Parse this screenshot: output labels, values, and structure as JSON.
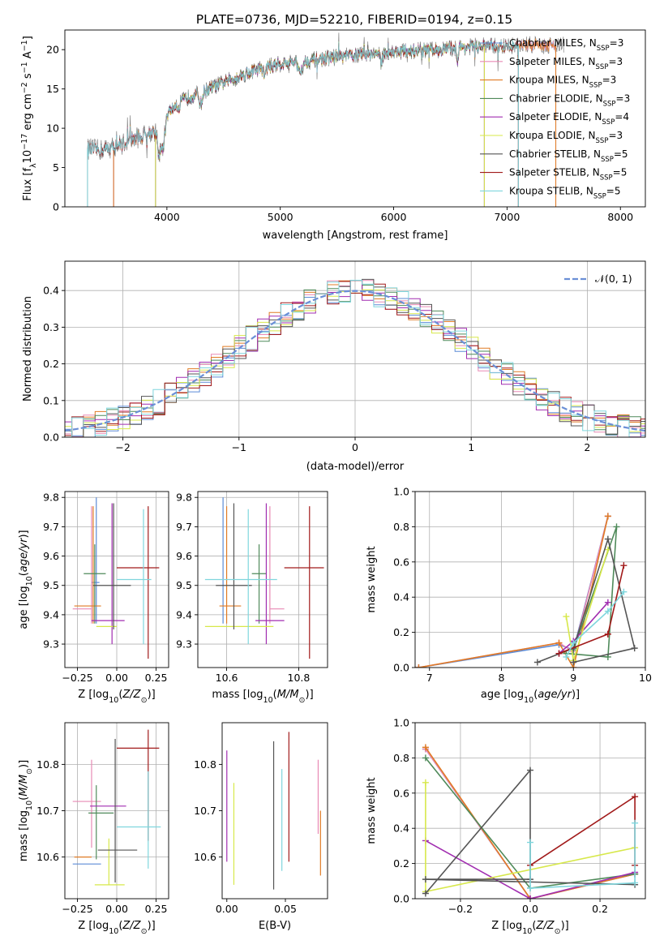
{
  "figure": {
    "title": "PLATE=0736, MJD=52210, FIBERID=0194, z=0.15"
  },
  "colors": {
    "Chabrier MILES": "#5b8bd6",
    "Salpeter MILES": "#e88ab5",
    "Kroupa MILES": "#e07b25",
    "Chabrier ELODIE": "#4f8a5a",
    "Salpeter ELODIE": "#a12db0",
    "Kroupa ELODIE": "#d7e84a",
    "Chabrier STELIB": "#555555",
    "Salpeter STELIB": "#a11a1a",
    "Kroupa STELIB": "#7fd6dd",
    "data": "#808080",
    "normal": "#6b8fd6"
  },
  "chart_data": [
    {
      "id": "spectrum",
      "type": "line",
      "xlabel": "wavelength [Angstrom, rest frame]",
      "ylabel": "Flux [f_λ10^-17 erg cm^-2 s^-1 A^-1]",
      "xlim": [
        3100,
        8220
      ],
      "ylim": [
        0,
        22.5
      ],
      "xticks": [
        4000,
        5000,
        6000,
        7000,
        8000
      ],
      "yticks": [
        0,
        5,
        10,
        15,
        20
      ],
      "grid": false,
      "legend_position": "top-right",
      "legend": [
        {
          "base": "Chabrier MILES, N",
          "n": "3"
        },
        {
          "base": "Salpeter MILES, N",
          "n": "3"
        },
        {
          "base": "Kroupa MILES, N",
          "n": "3"
        },
        {
          "base": "Chabrier ELODIE, N",
          "n": "3"
        },
        {
          "base": "Salpeter ELODIE, N",
          "n": "4"
        },
        {
          "base": "Kroupa ELODIE, N",
          "n": "3"
        },
        {
          "base": "Chabrier STELIB, N",
          "n": "5"
        },
        {
          "base": "Salpeter STELIB, N",
          "n": "5"
        },
        {
          "base": "Kroupa STELIB, N",
          "n": "5"
        }
      ],
      "legend_sub": "SSP",
      "continuum": {
        "x": [
          3300,
          3400,
          3500,
          3600,
          3700,
          3800,
          3900,
          4000,
          4100,
          4200,
          4300,
          4400,
          4600,
          4800,
          5000,
          5200,
          5400,
          5600,
          5800,
          6000,
          6200,
          6400,
          6600,
          6800,
          7000,
          7100
        ],
        "y": [
          7.4,
          7.2,
          7.5,
          8.0,
          8.6,
          9.1,
          9.8,
          11.8,
          13.2,
          14.0,
          14.6,
          15.2,
          16.4,
          17.5,
          18.2,
          18.5,
          18.9,
          19.2,
          19.5,
          19.7,
          19.9,
          20.0,
          20.3,
          20.5,
          20.4,
          20.6
        ]
      },
      "data_extends_to": 7500,
      "model_ranges": [
        {
          "model": "Chabrier MILES",
          "from": 3530,
          "to": 7430
        },
        {
          "model": "Salpeter MILES",
          "from": 3530,
          "to": 7430
        },
        {
          "model": "Kroupa MILES",
          "from": 3530,
          "to": 7430
        },
        {
          "model": "Chabrier ELODIE",
          "from": 3900,
          "to": 6800
        },
        {
          "model": "Salpeter ELODIE",
          "from": 3900,
          "to": 6800
        },
        {
          "model": "Kroupa ELODIE",
          "from": 3900,
          "to": 6800
        },
        {
          "model": "Chabrier STELIB",
          "from": 3300,
          "to": 7100
        },
        {
          "model": "Salpeter STELIB",
          "from": 3300,
          "to": 7100
        },
        {
          "model": "Kroupa STELIB",
          "from": 3300,
          "to": 7100
        }
      ]
    },
    {
      "id": "residuals",
      "type": "histogram",
      "xlabel": "(data-model)/error",
      "ylabel": "Normed distribution",
      "xlim": [
        -2.5,
        2.5
      ],
      "ylim": [
        0,
        0.48
      ],
      "xticks": [
        -2,
        -1,
        0,
        1,
        2
      ],
      "yticks": [
        0.0,
        0.1,
        0.2,
        0.3,
        0.4
      ],
      "grid": true,
      "legend_position": "top-right",
      "legend_label": "𝒩(0, 1)",
      "bin_width": 0.1
    },
    {
      "id": "age_vs_Z",
      "type": "errorbar",
      "xlabel": "Z [log10(Z/Z☉)]",
      "ylabel": "age  [log10(age/yr)]",
      "xlim": [
        -0.33,
        0.33
      ],
      "ylim": [
        9.22,
        9.82
      ],
      "xticks": [
        -0.25,
        0.0,
        0.25
      ],
      "yticks": [
        9.3,
        9.4,
        9.5,
        9.6,
        9.7,
        9.8
      ],
      "grid": true,
      "points": [
        {
          "model": "Chabrier MILES",
          "x": -0.13,
          "xerr": [
            0.03,
            0.02
          ],
          "y": 9.51,
          "yerr": [
            0.14,
            0.29
          ]
        },
        {
          "model": "Salpeter MILES",
          "x": -0.16,
          "xerr": [
            0.12,
            0.0
          ],
          "y": 9.42,
          "yerr": [
            0.05,
            0.35
          ]
        },
        {
          "model": "Kroupa MILES",
          "x": -0.15,
          "xerr": [
            0.12,
            0.05
          ],
          "y": 9.43,
          "yerr": [
            0.06,
            0.34
          ]
        },
        {
          "model": "Chabrier ELODIE",
          "x": -0.14,
          "xerr": [
            0.07,
            0.07
          ],
          "y": 9.54,
          "yerr": [
            0.17,
            0.1
          ]
        },
        {
          "model": "Salpeter ELODIE",
          "x": -0.03,
          "xerr": [
            0.13,
            0.08
          ],
          "y": 9.38,
          "yerr": [
            0.08,
            0.4
          ]
        },
        {
          "model": "Kroupa ELODIE",
          "x": -0.08,
          "xerr": [
            0.05,
            0.08
          ],
          "y": 9.36,
          "yerr": [
            0.0,
            0.0
          ]
        },
        {
          "model": "Chabrier STELIB",
          "x": -0.02,
          "xerr": [
            0.13,
            0.11
          ],
          "y": 9.5,
          "yerr": [
            0.15,
            0.28
          ]
        },
        {
          "model": "Salpeter STELIB",
          "x": 0.2,
          "xerr": [
            0.2,
            0.07
          ],
          "y": 9.56,
          "yerr": [
            0.31,
            0.21
          ]
        },
        {
          "model": "Kroupa STELIB",
          "x": 0.17,
          "xerr": [
            0.17,
            0.05
          ],
          "y": 9.52,
          "yerr": [
            0.22,
            0.24
          ]
        }
      ]
    },
    {
      "id": "age_vs_mass",
      "type": "errorbar",
      "xlabel": "mass [log10(M/M☉)]",
      "ylabel": "",
      "xlim": [
        10.52,
        10.88
      ],
      "ylim": [
        9.22,
        9.82
      ],
      "xticks": [
        10.6,
        10.8
      ],
      "yticks": [
        9.3,
        9.4,
        9.5,
        9.6,
        9.7,
        9.8
      ],
      "grid": true,
      "points": [
        {
          "model": "Chabrier MILES",
          "x": 10.59,
          "xerr": [
            0.0,
            0.0
          ],
          "y": 9.51,
          "yerr": [
            0.14,
            0.29
          ]
        },
        {
          "model": "Salpeter MILES",
          "x": 10.72,
          "xerr": [
            0.0,
            0.04
          ],
          "y": 9.42,
          "yerr": [
            0.05,
            0.35
          ]
        },
        {
          "model": "Kroupa MILES",
          "x": 10.6,
          "xerr": [
            0.02,
            0.04
          ],
          "y": 9.43,
          "yerr": [
            0.06,
            0.34
          ]
        },
        {
          "model": "Chabrier ELODIE",
          "x": 10.69,
          "xerr": [
            0.02,
            0.02
          ],
          "y": 9.54,
          "yerr": [
            0.17,
            0.1
          ]
        },
        {
          "model": "Salpeter ELODIE",
          "x": 10.71,
          "xerr": [
            0.03,
            0.05
          ],
          "y": 9.38,
          "yerr": [
            0.08,
            0.4
          ]
        },
        {
          "model": "Kroupa ELODIE",
          "x": 10.64,
          "xerr": [
            0.1,
            0.09
          ],
          "y": 9.36,
          "yerr": [
            0.0,
            0.0
          ]
        },
        {
          "model": "Chabrier STELIB",
          "x": 10.62,
          "xerr": [
            0.05,
            0.05
          ],
          "y": 9.5,
          "yerr": [
            0.15,
            0.28
          ]
        },
        {
          "model": "Salpeter STELIB",
          "x": 10.83,
          "xerr": [
            0.07,
            0.04
          ],
          "y": 9.56,
          "yerr": [
            0.31,
            0.21
          ]
        },
        {
          "model": "Kroupa STELIB",
          "x": 10.66,
          "xerr": [
            0.12,
            0.08
          ],
          "y": 9.52,
          "yerr": [
            0.22,
            0.24
          ]
        }
      ]
    },
    {
      "id": "weight_vs_age",
      "type": "line",
      "xlabel": "age  [log10(age/yr)]",
      "ylabel": "mass weight",
      "xlim": [
        6.8,
        10
      ],
      "ylim": [
        0,
        1
      ],
      "xticks": [
        7,
        8,
        9,
        10
      ],
      "yticks": [
        0.0,
        0.2,
        0.4,
        0.6,
        0.8,
        1.0
      ],
      "grid": true,
      "series": [
        {
          "model": "Chabrier MILES",
          "x": [
            6.85,
            8.8,
            9.0,
            9.48
          ],
          "y": [
            0.0,
            0.13,
            0.1,
            0.86
          ]
        },
        {
          "model": "Salpeter MILES",
          "x": [
            6.85,
            8.8,
            9.0,
            9.48
          ],
          "y": [
            0.0,
            0.14,
            0.09,
            0.86
          ]
        },
        {
          "model": "Kroupa MILES",
          "x": [
            6.85,
            8.8,
            9.0,
            9.48
          ],
          "y": [
            0.0,
            0.14,
            0.0,
            0.86
          ]
        },
        {
          "model": "Chabrier ELODIE",
          "x": [
            8.9,
            9.48,
            9.6,
            9.0
          ],
          "y": [
            0.08,
            0.06,
            0.8,
            0.1
          ]
        },
        {
          "model": "Salpeter ELODIE",
          "x": [
            8.8,
            9.0,
            9.48
          ],
          "y": [
            0.08,
            0.15,
            0.37
          ]
        },
        {
          "model": "Kroupa ELODIE",
          "x": [
            8.9,
            9.0,
            9.48
          ],
          "y": [
            0.29,
            0.04,
            0.67
          ]
        },
        {
          "model": "Chabrier STELIB",
          "x": [
            8.5,
            9.0,
            9.48,
            9.85,
            9.0
          ],
          "y": [
            0.03,
            0.11,
            0.73,
            0.11,
            0.03
          ]
        },
        {
          "model": "Salpeter STELIB",
          "x": [
            8.8,
            9.48,
            9.7,
            9.48
          ],
          "y": [
            0.08,
            0.19,
            0.58,
            0.19
          ]
        },
        {
          "model": "Kroupa STELIB",
          "x": [
            8.9,
            9.0,
            9.48,
            9.7
          ],
          "y": [
            0.06,
            0.14,
            0.32,
            0.43
          ]
        }
      ]
    },
    {
      "id": "mass_vs_Z",
      "type": "errorbar",
      "xlabel": "Z [log10(Z/Z☉)]",
      "ylabel": "mass [log10(M/M☉)]",
      "xlim": [
        -0.33,
        0.33
      ],
      "ylim": [
        10.51,
        10.89
      ],
      "xticks": [
        -0.25,
        0.0,
        0.25
      ],
      "yticks": [
        10.6,
        10.7,
        10.8
      ],
      "grid": true,
      "points": [
        {
          "model": "Chabrier MILES",
          "x": -0.2,
          "xerr": [
            0.08,
            0.1
          ],
          "y": 10.585,
          "yerr": [
            0.0,
            0.0
          ]
        },
        {
          "model": "Salpeter MILES",
          "x": -0.16,
          "xerr": [
            0.12,
            0.06
          ],
          "y": 10.72,
          "yerr": [
            0.1,
            0.09
          ]
        },
        {
          "model": "Kroupa MILES",
          "x": -0.22,
          "xerr": [
            0.05,
            0.06
          ],
          "y": 10.6,
          "yerr": [
            0.0,
            0.0
          ]
        },
        {
          "model": "Chabrier ELODIE",
          "x": -0.13,
          "xerr": [
            0.05,
            0.11
          ],
          "y": 10.695,
          "yerr": [
            0.1,
            0.06
          ]
        },
        {
          "model": "Salpeter ELODIE",
          "x": -0.04,
          "xerr": [
            0.13,
            0.1
          ],
          "y": 10.71,
          "yerr": [
            0.0,
            0.0
          ]
        },
        {
          "model": "Kroupa ELODIE",
          "x": -0.05,
          "xerr": [
            0.09,
            0.1
          ],
          "y": 10.54,
          "yerr": [
            0.0,
            0.1
          ]
        },
        {
          "model": "Chabrier STELIB",
          "x": -0.01,
          "xerr": [
            0.11,
            0.14
          ],
          "y": 10.615,
          "yerr": [
            0.07,
            0.24
          ]
        },
        {
          "model": "Salpeter STELIB",
          "x": 0.2,
          "xerr": [
            0.2,
            0.07
          ],
          "y": 10.835,
          "yerr": [
            0.2,
            0.04
          ]
        },
        {
          "model": "Kroupa STELIB",
          "x": 0.2,
          "xerr": [
            0.2,
            0.08
          ],
          "y": 10.665,
          "yerr": [
            0.09,
            0.12
          ]
        }
      ]
    },
    {
      "id": "mass_vs_EBV",
      "type": "errorbar",
      "xlabel": "E(B-V)",
      "ylabel": "",
      "xlim": [
        -0.004,
        0.086
      ],
      "ylim": [
        10.51,
        10.89
      ],
      "xticks": [
        0.0,
        0.05
      ],
      "yticks": [
        10.6,
        10.7,
        10.8
      ],
      "grid": false,
      "points": [
        {
          "model": "Salpeter ELODIE",
          "x": 0.0,
          "y": 10.71,
          "yerr": [
            0.12,
            0.12
          ]
        },
        {
          "model": "Kroupa ELODIE",
          "x": 0.006,
          "y": 10.65,
          "yerr": [
            0.11,
            0.11
          ]
        },
        {
          "model": "Chabrier STELIB",
          "x": 0.04,
          "y": 10.69,
          "yerr": [
            0.16,
            0.16
          ]
        },
        {
          "model": "Kroupa STELIB",
          "x": 0.047,
          "y": 10.68,
          "yerr": [
            0.11,
            0.11
          ]
        },
        {
          "model": "Salpeter STELIB",
          "x": 0.053,
          "y": 10.73,
          "yerr": [
            0.14,
            0.14
          ]
        },
        {
          "model": "Salpeter MILES",
          "x": 0.078,
          "y": 10.73,
          "yerr": [
            0.08,
            0.08
          ]
        },
        {
          "model": "Kroupa MILES",
          "x": 0.08,
          "y": 10.63,
          "yerr": [
            0.07,
            0.07
          ]
        }
      ]
    },
    {
      "id": "weight_vs_Z",
      "type": "line",
      "xlabel": "Z [log10(Z/Z☉)]",
      "ylabel": "mass weight",
      "xlim": [
        -0.33,
        0.33
      ],
      "ylim": [
        0,
        1
      ],
      "xticks": [
        -0.2,
        0.0,
        0.2
      ],
      "yticks": [
        0.0,
        0.2,
        0.4,
        0.6,
        0.8,
        1.0
      ],
      "grid": true,
      "series": [
        {
          "model": "Chabrier MILES",
          "x": [
            -0.3,
            0.0,
            0.3
          ],
          "y": [
            0.85,
            0.0,
            0.14
          ]
        },
        {
          "model": "Salpeter MILES",
          "x": [
            -0.3,
            0.0,
            0.3
          ],
          "y": [
            0.85,
            0.0,
            0.14
          ]
        },
        {
          "model": "Kroupa MILES",
          "x": [
            -0.3,
            0.0,
            0.3
          ],
          "y": [
            0.86,
            0.0,
            0.14
          ]
        },
        {
          "model": "Chabrier ELODIE",
          "x": [
            -0.3,
            0.0,
            0.3
          ],
          "y": [
            0.8,
            0.06,
            0.14
          ]
        },
        {
          "model": "Salpeter ELODIE",
          "x": [
            -0.3,
            0.0,
            0.3
          ],
          "y": [
            0.33,
            0.0,
            0.15
          ]
        },
        {
          "model": "Kroupa ELODIE",
          "x": [
            -0.3,
            -0.3,
            0.3
          ],
          "y": [
            0.66,
            0.04,
            0.29
          ]
        },
        {
          "model": "Chabrier STELIB",
          "x": [
            -0.3,
            0.0,
            0.0,
            -0.3,
            0.3
          ],
          "y": [
            0.03,
            0.73,
            0.11,
            0.11,
            0.08
          ]
        },
        {
          "model": "Salpeter STELIB",
          "x": [
            0.0,
            0.3,
            0.3
          ],
          "y": [
            0.19,
            0.58,
            0.19
          ]
        },
        {
          "model": "Kroupa STELIB",
          "x": [
            0.0,
            0.0,
            0.3,
            0.3
          ],
          "y": [
            0.32,
            0.06,
            0.09,
            0.43
          ]
        }
      ]
    }
  ]
}
